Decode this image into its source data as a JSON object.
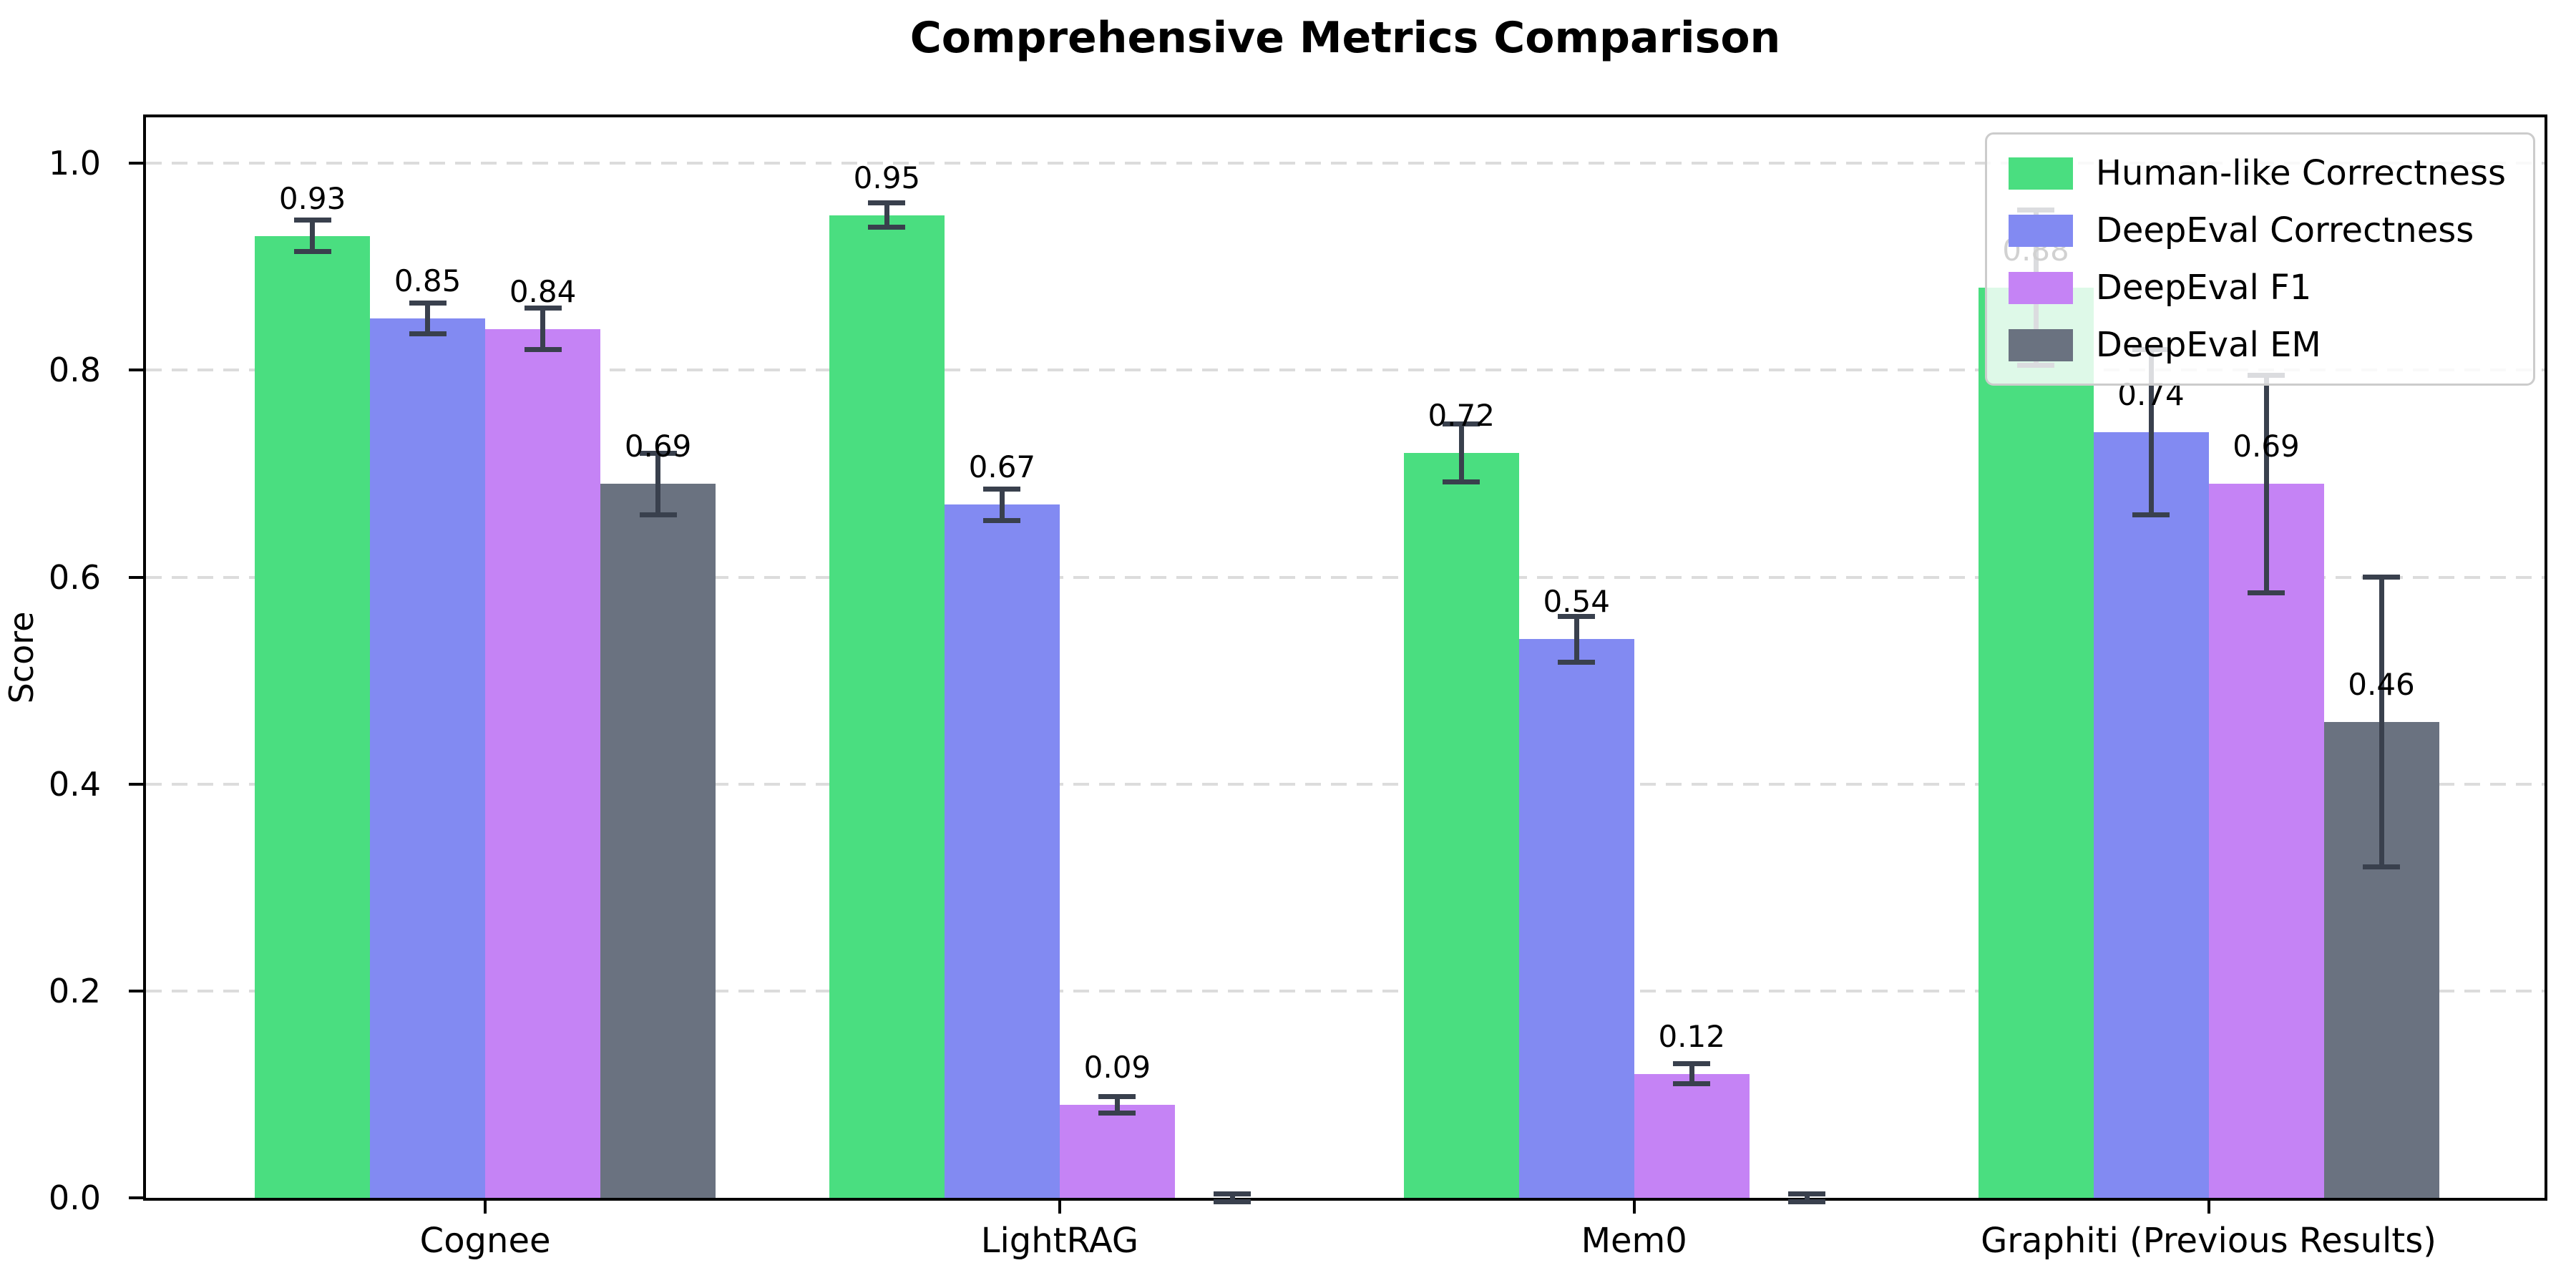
{
  "title": "Comprehensive Metrics Comparison",
  "axes": {
    "ylabel": "Score",
    "ytick_labels": [
      "0.0",
      "0.2",
      "0.4",
      "0.6",
      "0.8",
      "1.0"
    ],
    "xtick_labels": [
      "Cognee",
      "LightRAG",
      "Mem0",
      "Graphiti (Previous Results)"
    ]
  },
  "legend": {
    "position": "upper right",
    "items": [
      {
        "label": "Human-like Correctness",
        "color": "#4ade80"
      },
      {
        "label": "DeepEval Correctness",
        "color": "#828af2"
      },
      {
        "label": "DeepEval F1",
        "color": "#c583f5"
      },
      {
        "label": "DeepEval EM",
        "color": "#6a7280"
      }
    ]
  },
  "colors": {
    "background": "#ffffff",
    "axis": "#000000",
    "grid": "#dcdcdc",
    "error_bar": "#39404d",
    "legend_border": "#cccccc"
  },
  "chart_data": {
    "type": "bar",
    "title": "Comprehensive Metrics Comparison",
    "xlabel": "",
    "ylabel": "Score",
    "ylim": [
      0,
      1.05
    ],
    "yticks": [
      0.0,
      0.2,
      0.4,
      0.6,
      0.8,
      1.0
    ],
    "grid": "horizontal-dashed",
    "legend_position": "upper right",
    "categories": [
      "Cognee",
      "LightRAG",
      "Mem0",
      "Graphiti (Previous Results)"
    ],
    "series": [
      {
        "name": "Human-like Correctness",
        "color": "#4ade80",
        "values": [
          0.93,
          0.95,
          0.72,
          0.88
        ],
        "errors": [
          0.015,
          0.012,
          0.028,
          0.075
        ],
        "labels": [
          "0.93",
          "0.95",
          "0.72",
          "0.88"
        ]
      },
      {
        "name": "DeepEval Correctness",
        "color": "#828af2",
        "values": [
          0.85,
          0.67,
          0.54,
          0.74
        ],
        "errors": [
          0.015,
          0.015,
          0.022,
          0.08
        ],
        "labels": [
          "0.85",
          "0.67",
          "0.54",
          "0.74"
        ]
      },
      {
        "name": "DeepEval F1",
        "color": "#c583f5",
        "values": [
          0.84,
          0.09,
          0.12,
          0.69
        ],
        "errors": [
          0.02,
          0.008,
          0.01,
          0.105
        ],
        "labels": [
          "0.84",
          "0.09",
          "0.12",
          "0.69"
        ]
      },
      {
        "name": "DeepEval EM",
        "color": "#6a7280",
        "values": [
          0.69,
          0.0,
          0.0,
          0.46
        ],
        "errors": [
          0.03,
          0.004,
          0.004,
          0.14
        ],
        "labels": [
          "0.69",
          "",
          "",
          "0.46"
        ]
      }
    ]
  }
}
